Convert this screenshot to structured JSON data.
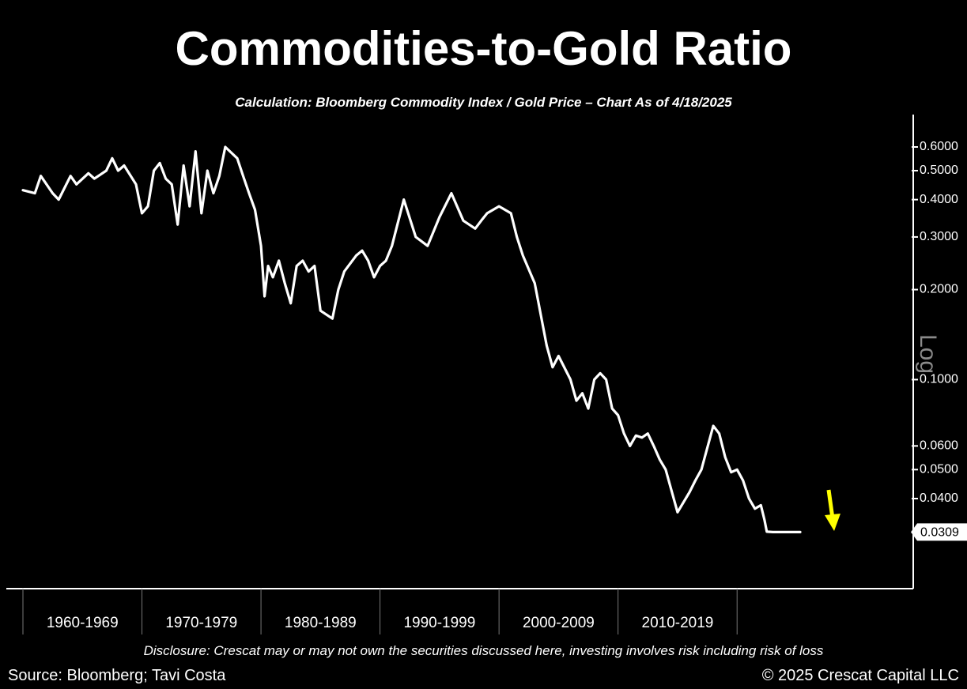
{
  "chart_data": {
    "type": "line",
    "title": "Commodities-to-Gold Ratio",
    "subtitle": "Calculation: Bloomberg Commodity Index / Gold Price – Chart As of 4/18/2025",
    "y_scale": "log",
    "axis_label": "Log",
    "y_ticks": [
      "0.6000",
      "0.5000",
      "0.4000",
      "0.3000",
      "0.2000",
      "0.1000",
      "0.0600",
      "0.0500",
      "0.0400"
    ],
    "ylim": [
      0.021,
      0.7
    ],
    "xlim": [
      1959.5,
      2029
    ],
    "decades": [
      "1960-1969",
      "1970-1979",
      "1980-1989",
      "1990-1999",
      "2000-2009",
      "2010-2019"
    ],
    "last_value": "0.0309",
    "series": [
      {
        "color": "#ffffff",
        "x": [
          1960.0,
          1961.0,
          1961.5,
          1962.5,
          1963.0,
          1964.0,
          1964.5,
          1965.5,
          1966.0,
          1967.0,
          1967.5,
          1968.0,
          1968.5,
          1969.5,
          1970.0,
          1970.5,
          1971.0,
          1971.5,
          1972.0,
          1972.5,
          1973.0,
          1973.5,
          1974.0,
          1974.5,
          1975.0,
          1975.5,
          1976.0,
          1976.5,
          1977.0,
          1978.0,
          1978.5,
          1979.0,
          1979.5,
          1980.0,
          1980.3,
          1980.6,
          1981.0,
          1981.5,
          1982.0,
          1982.5,
          1983.0,
          1983.5,
          1984.0,
          1984.5,
          1985.0,
          1986.0,
          1986.5,
          1987.0,
          1988.0,
          1988.5,
          1989.0,
          1989.5,
          1990.0,
          1990.5,
          1991.0,
          1992.0,
          1993.0,
          1994.0,
          1995.0,
          1996.0,
          1997.0,
          1998.0,
          1998.5,
          1999.0,
          2000.0,
          2001.0,
          2001.5,
          2002.0,
          2003.0,
          2004.0,
          2004.5,
          2005.0,
          2006.0,
          2006.5,
          2007.0,
          2007.5,
          2008.0,
          2008.5,
          2009.0,
          2009.5,
          2010.0,
          2010.5,
          2011.0,
          2011.5,
          2012.0,
          2012.5,
          2013.0,
          2013.5,
          2014.0,
          2015.0,
          2016.0,
          2016.5,
          2017.0,
          2018.0,
          2018.5,
          2019.0,
          2019.5,
          2020.0,
          2020.5,
          2021.0,
          2021.5,
          2022.0,
          2022.3,
          2022.5,
          2023.0,
          2023.5,
          2024.0,
          2024.5,
          2025.0,
          2025.3
        ],
        "y": [
          0.43,
          0.42,
          0.48,
          0.42,
          0.4,
          0.48,
          0.45,
          0.49,
          0.47,
          0.5,
          0.55,
          0.5,
          0.52,
          0.45,
          0.36,
          0.38,
          0.5,
          0.53,
          0.47,
          0.45,
          0.33,
          0.52,
          0.38,
          0.58,
          0.36,
          0.5,
          0.42,
          0.48,
          0.6,
          0.55,
          0.48,
          0.42,
          0.37,
          0.28,
          0.19,
          0.24,
          0.22,
          0.25,
          0.21,
          0.18,
          0.24,
          0.25,
          0.23,
          0.24,
          0.17,
          0.16,
          0.2,
          0.23,
          0.26,
          0.27,
          0.25,
          0.22,
          0.24,
          0.25,
          0.28,
          0.4,
          0.3,
          0.28,
          0.35,
          0.42,
          0.34,
          0.32,
          0.34,
          0.36,
          0.38,
          0.36,
          0.3,
          0.26,
          0.21,
          0.13,
          0.11,
          0.12,
          0.1,
          0.085,
          0.09,
          0.08,
          0.1,
          0.105,
          0.1,
          0.08,
          0.076,
          0.066,
          0.06,
          0.065,
          0.064,
          0.066,
          0.06,
          0.054,
          0.05,
          0.036,
          0.042,
          0.046,
          0.05,
          0.07,
          0.066,
          0.055,
          0.049,
          0.05,
          0.046,
          0.04,
          0.037,
          0.038,
          0.034,
          0.031,
          0.0309,
          0.0309,
          0.0309,
          0.0309,
          0.0309,
          0.0309
        ]
      }
    ]
  },
  "footer": {
    "disclosure": "Disclosure: Crescat may or may not own the securities discussed here, investing involves risk including risk of loss",
    "source": "Source: Bloomberg; Tavi Costa",
    "copyright": "© 2025 Crescat Capital LLC"
  },
  "colors": {
    "background": "#000000",
    "line": "#ffffff",
    "arrow": "#ffff00",
    "axis": "#ffffff"
  }
}
